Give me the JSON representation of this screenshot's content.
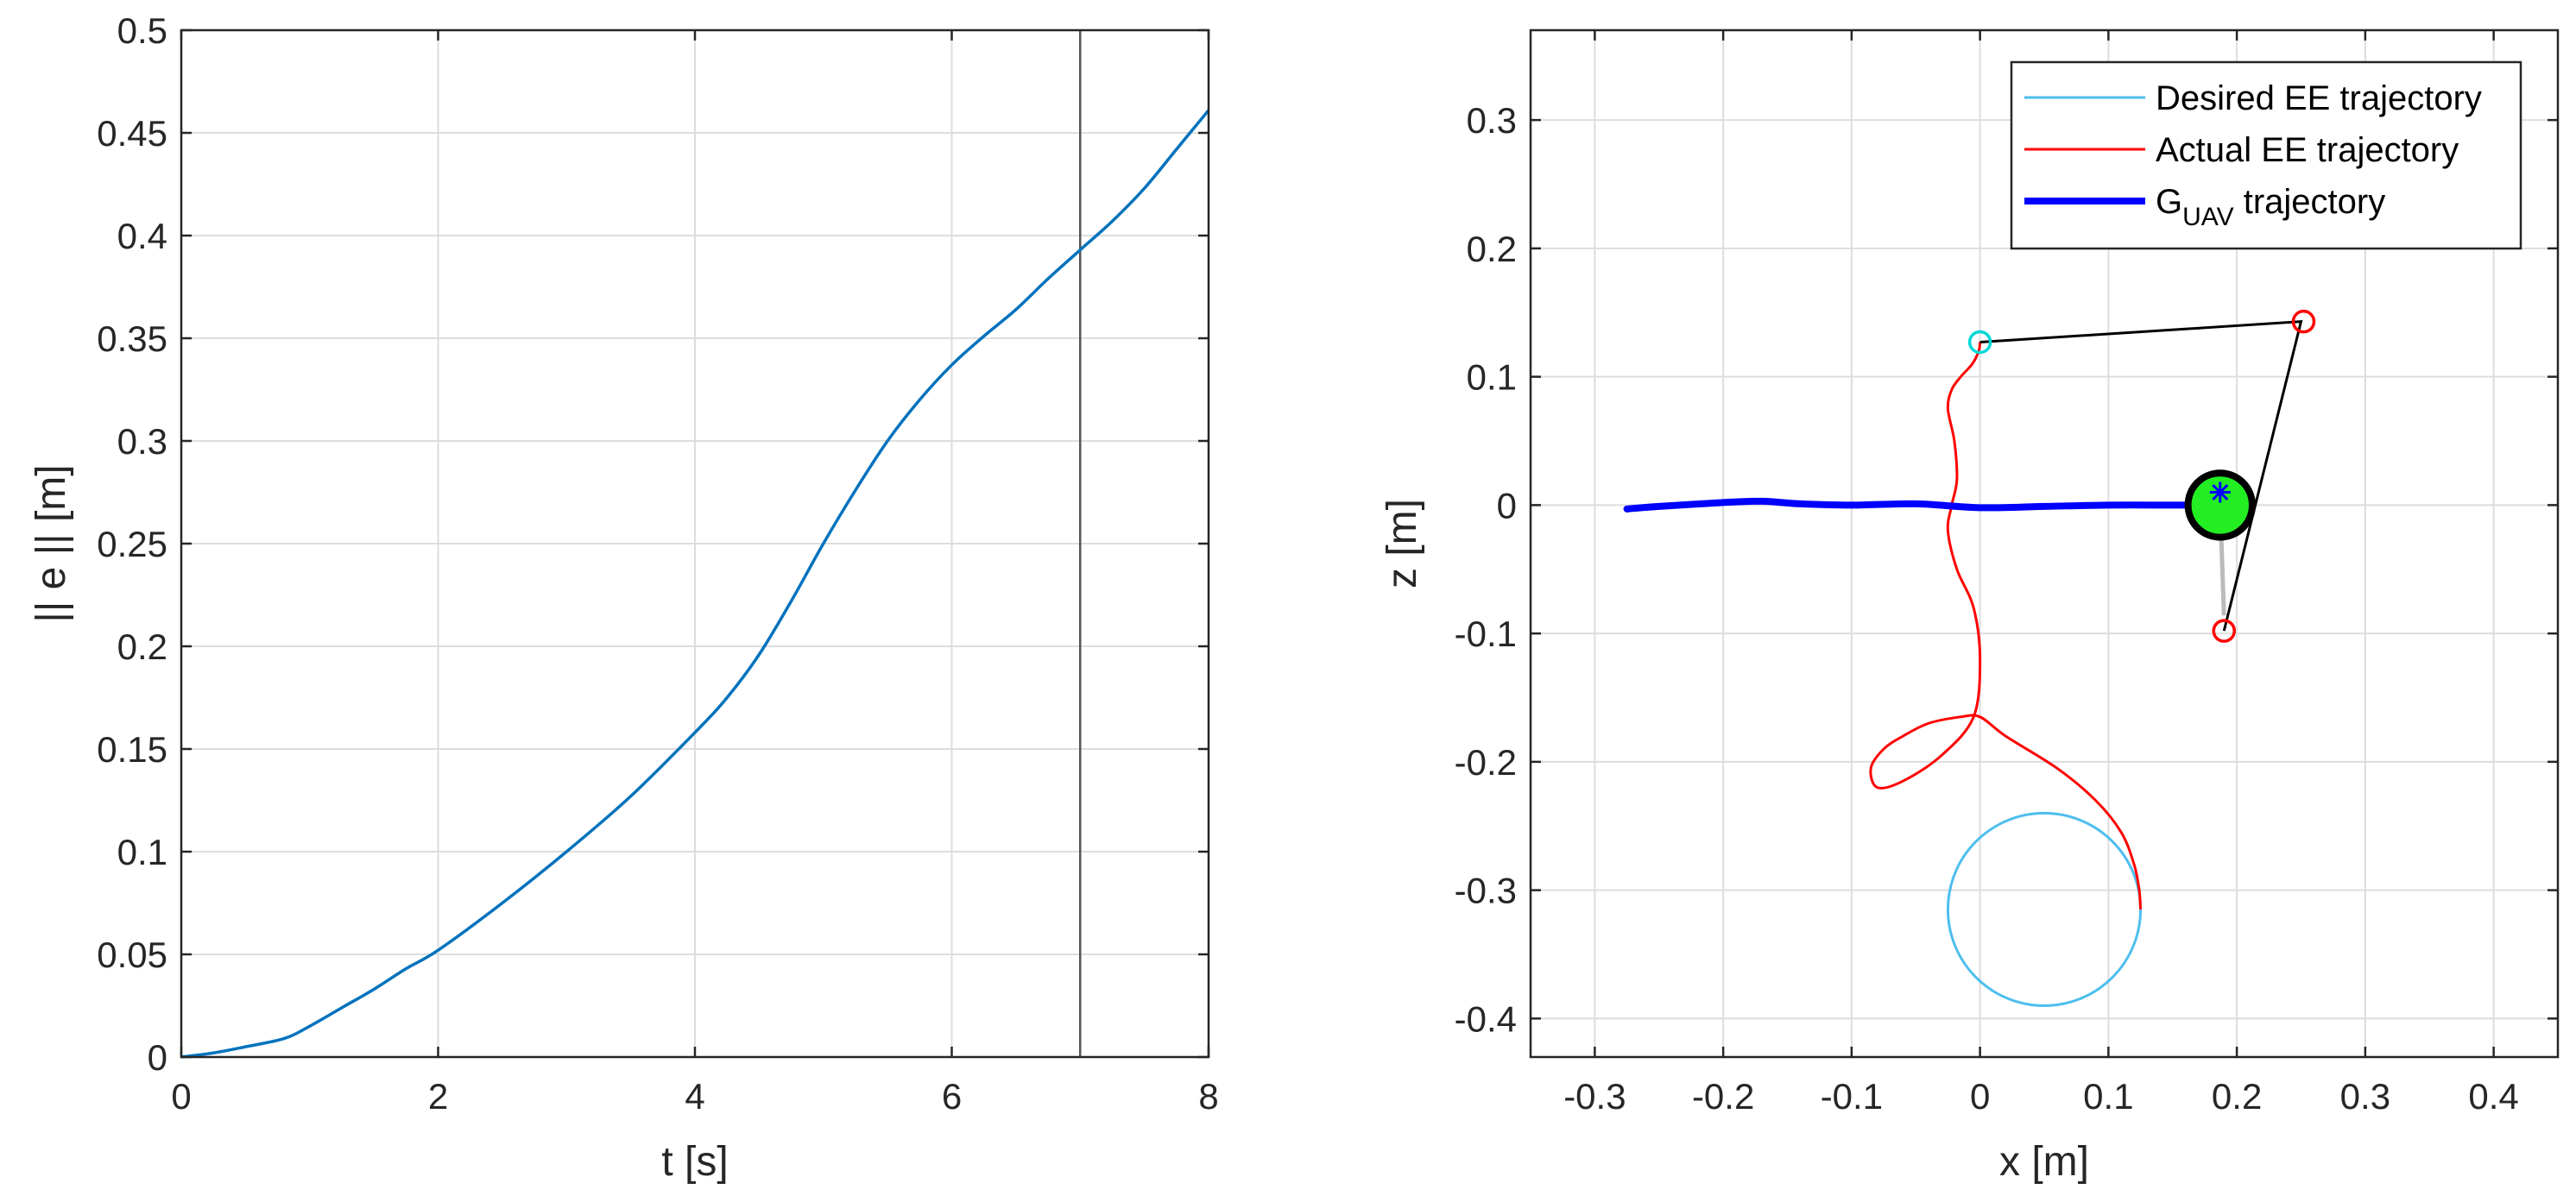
{
  "colors": {
    "error_line": "#0072BD",
    "desired": "#4DBEEE",
    "actual": "#FF0000",
    "guav": "#0000FF",
    "arm": "#000000",
    "body_fill": "#22EE22",
    "cyan_marker": "#00D8D8",
    "grid": "#DDDDDD",
    "vline": "#555555",
    "link": "#BBBBBB"
  },
  "chart_data": [
    {
      "type": "line",
      "xlabel": "t [s]",
      "ylabel": "|| e || [m]",
      "xlim": [
        0,
        8
      ],
      "ylim": [
        0,
        0.5
      ],
      "xticks": [
        "0",
        "2",
        "4",
        "6",
        "8"
      ],
      "yticks": [
        "0",
        "0.05",
        "0.1",
        "0.15",
        "0.2",
        "0.25",
        "0.3",
        "0.35",
        "0.4",
        "0.45",
        "0.5"
      ],
      "grid": true,
      "vertical_line_x": 7,
      "series": [
        {
          "x": [
            0,
            0.25,
            0.5,
            0.8,
            1.0,
            1.25,
            1.5,
            1.75,
            2.0,
            2.5,
            3.0,
            3.5,
            4.0,
            4.25,
            4.5,
            4.75,
            5.0,
            5.25,
            5.5,
            5.75,
            6.0,
            6.25,
            6.5,
            6.75,
            7.0,
            7.25,
            7.5,
            7.75,
            8.0
          ],
          "y": [
            0,
            0.002,
            0.005,
            0.009,
            0.015,
            0.024,
            0.033,
            0.043,
            0.052,
            0.075,
            0.1,
            0.127,
            0.158,
            0.175,
            0.196,
            0.222,
            0.25,
            0.276,
            0.3,
            0.32,
            0.337,
            0.351,
            0.364,
            0.379,
            0.393,
            0.407,
            0.423,
            0.442,
            0.461
          ]
        }
      ]
    },
    {
      "type": "line",
      "xlabel": "x [m]",
      "ylabel": "z [m]",
      "xlim": [
        -0.35,
        0.45
      ],
      "ylim": [
        -0.43,
        0.37
      ],
      "xticks": [
        "-0.3",
        "-0.2",
        "-0.1",
        "0",
        "0.1",
        "0.2",
        "0.3",
        "0.4"
      ],
      "yticks": [
        "-0.4",
        "-0.3",
        "-0.2",
        "-0.1",
        "0",
        "0.1",
        "0.2",
        "0.3"
      ],
      "grid": true,
      "legend": "top-right",
      "series": [
        {
          "name": "Desired EE trajectory",
          "shape": "circle",
          "center": [
            0.05,
            -0.315
          ],
          "radius": 0.075
        },
        {
          "name": "Actual EE trajectory",
          "x": [
            0.125,
            0.124,
            0.12,
            0.11,
            0.09,
            0.06,
            0.02,
            0.0,
            -0.015,
            -0.04,
            -0.06,
            -0.075,
            -0.085,
            -0.08,
            -0.06,
            -0.03,
            -0.005,
            0.0,
            -0.005,
            -0.018,
            -0.025,
            -0.022,
            -0.018,
            -0.02,
            -0.025,
            -0.022,
            -0.015,
            -0.006,
            -0.001,
            0.0
          ],
          "y": [
            -0.315,
            -0.3,
            -0.28,
            -0.255,
            -0.23,
            -0.205,
            -0.18,
            -0.165,
            -0.165,
            -0.17,
            -0.18,
            -0.19,
            -0.205,
            -0.22,
            -0.215,
            -0.195,
            -0.165,
            -0.12,
            -0.08,
            -0.05,
            -0.02,
            0.0,
            0.02,
            0.05,
            0.075,
            0.09,
            0.1,
            0.11,
            0.12,
            0.127
          ]
        },
        {
          "name": "G_UAV trajectory",
          "x": [
            -0.275,
            -0.25,
            -0.2,
            -0.17,
            -0.14,
            -0.1,
            -0.05,
            0.0,
            0.05,
            0.1,
            0.15,
            0.185
          ],
          "y": [
            -0.003,
            -0.001,
            0.002,
            0.003,
            0.001,
            0.0,
            0.001,
            -0.002,
            -0.001,
            0.0,
            0.0,
            0.0
          ]
        }
      ],
      "arm_polyline": {
        "x": [
          0.0,
          0.25,
          0.19
        ],
        "y": [
          0.127,
          0.143,
          -0.098
        ]
      },
      "red_markers": [
        [
          0.252,
          0.143
        ],
        [
          0.19,
          -0.098
        ]
      ],
      "cyan_marker": [
        0.0,
        0.127
      ],
      "uav_body": {
        "center": [
          0.187,
          0.0
        ],
        "radius": 0.025
      },
      "star_marker": [
        0.187,
        0.01
      ]
    }
  ],
  "legend": {
    "items": [
      {
        "label": "Desired EE trajectory"
      },
      {
        "label": "Actual EE trajectory"
      },
      {
        "label_main": "G",
        "label_sub": "UAV",
        "label_rest": " trajectory"
      }
    ]
  }
}
